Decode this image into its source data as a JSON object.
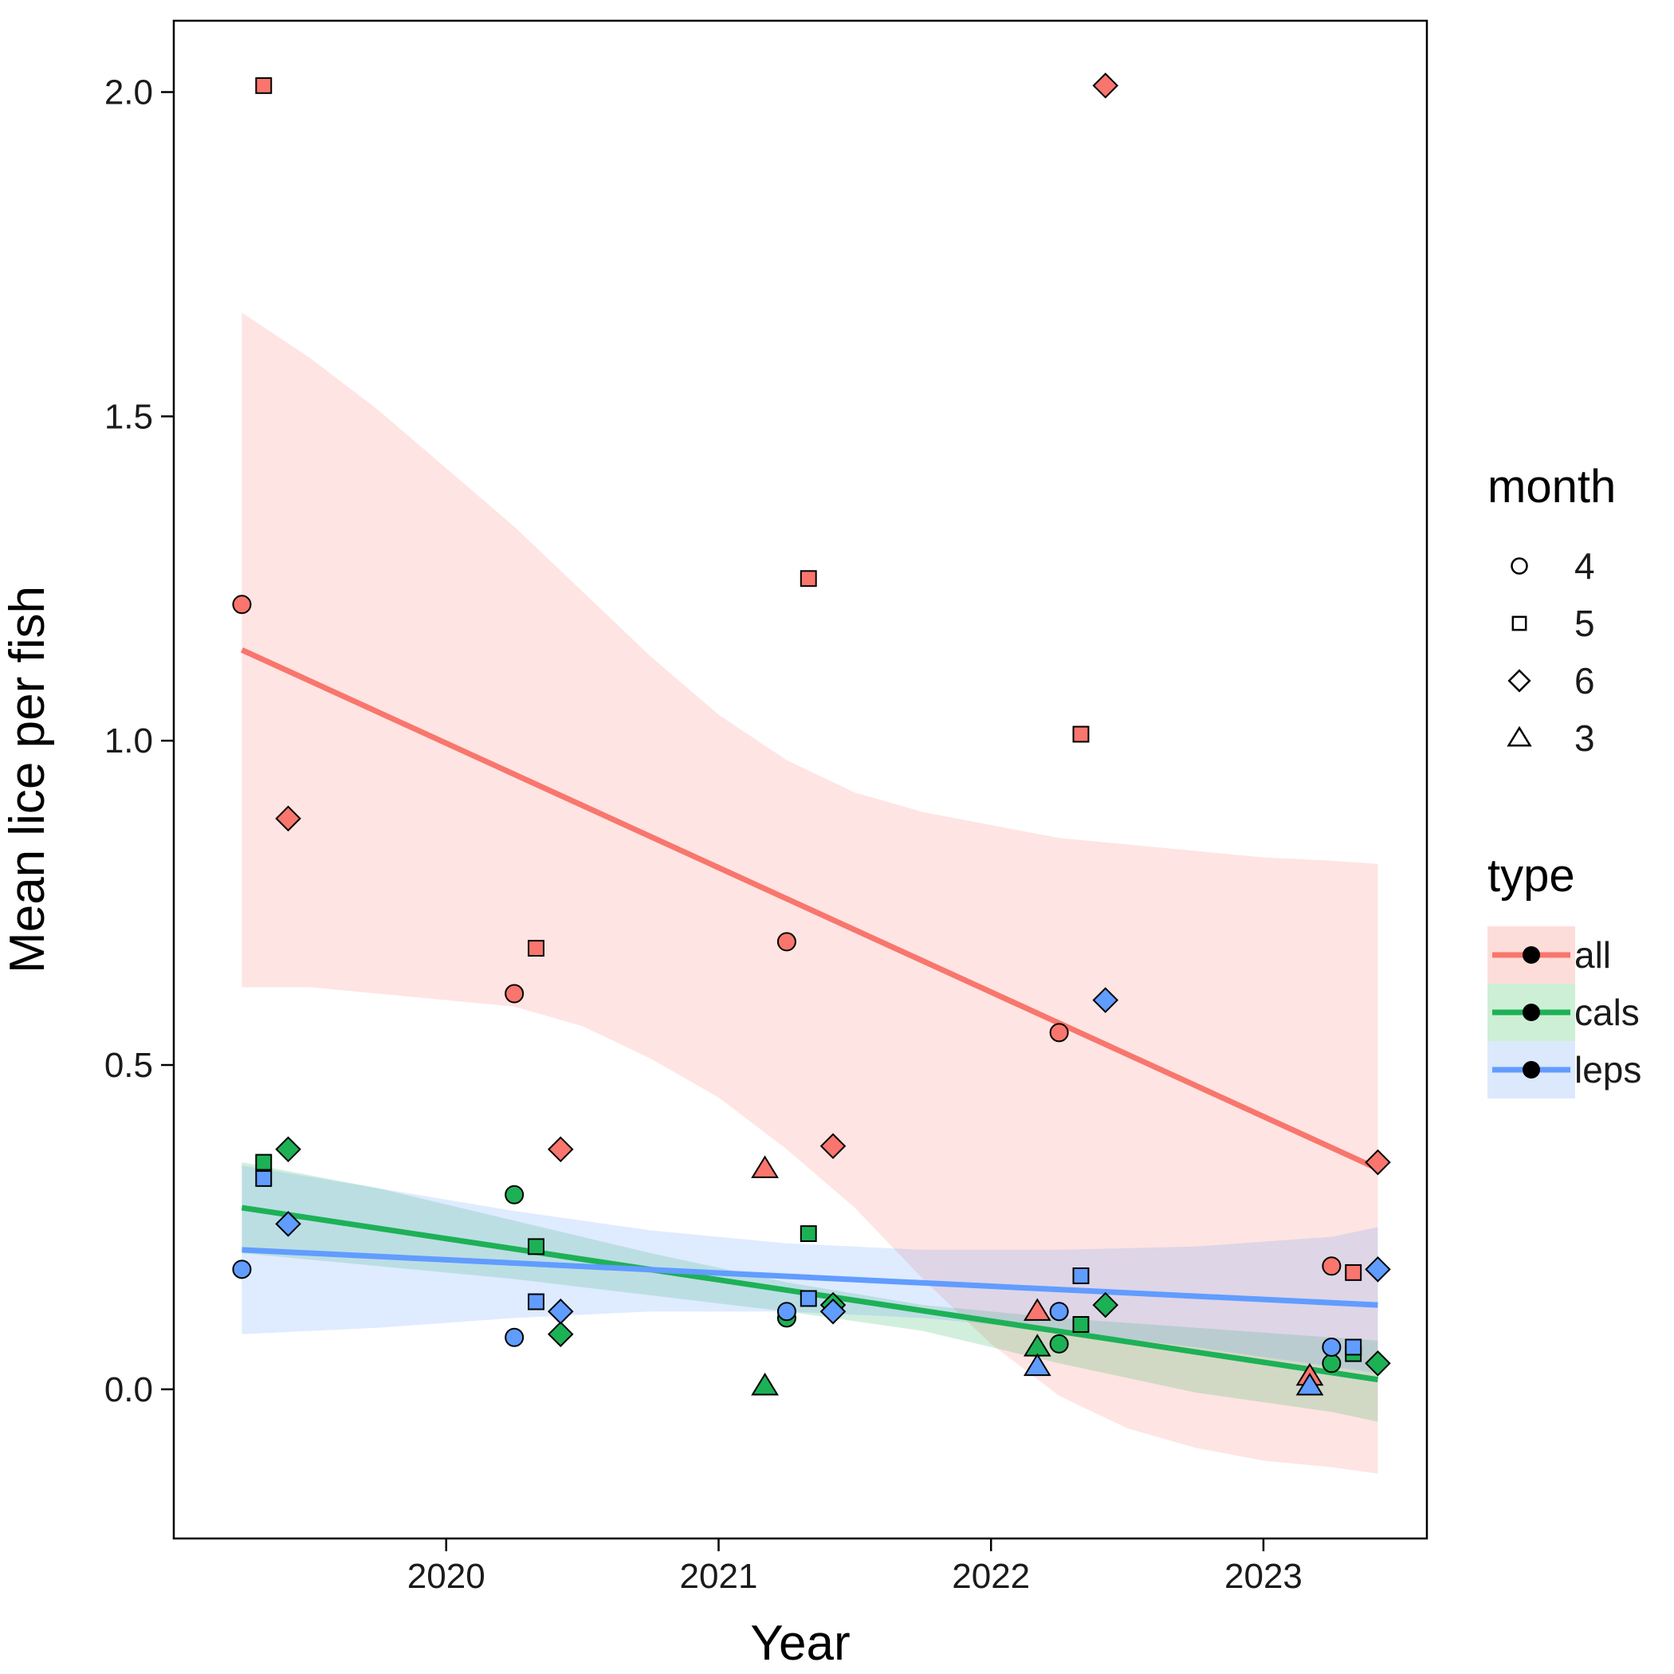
{
  "chart_data": {
    "type": "scatter",
    "xlabel": "Year",
    "ylabel": "Mean lice per fish",
    "xlim": [
      2019.0,
      2023.6
    ],
    "ylim": [
      -0.23,
      2.11
    ],
    "x_ticks": [
      2020,
      2021,
      2022,
      2023
    ],
    "x_tick_labels": [
      "2020",
      "2021",
      "2022",
      "2023"
    ],
    "y_ticks": [
      0.0,
      0.5,
      1.0,
      1.5,
      2.0
    ],
    "y_tick_labels": [
      "0.0",
      "0.5",
      "1.0",
      "1.5",
      "2.0"
    ],
    "grid": false,
    "legend_position": "right",
    "legends": {
      "month": {
        "title": "month",
        "items": [
          {
            "label": "4",
            "shape": "circle"
          },
          {
            "label": "5",
            "shape": "square"
          },
          {
            "label": "6",
            "shape": "diamond"
          },
          {
            "label": "3",
            "shape": "triangle"
          }
        ]
      },
      "type": {
        "title": "type",
        "items": [
          {
            "label": "all",
            "color": "#F8766D",
            "band": "#FDDDDA"
          },
          {
            "label": "cals",
            "color": "#1DB156",
            "band": "#CDEFD5"
          },
          {
            "label": "leps",
            "color": "#619CFF",
            "band": "#DCE8FC"
          }
        ]
      }
    },
    "series": [
      {
        "name": "all",
        "color": "#F8766D",
        "band_color": "#F8766D",
        "fit": {
          "x_start": 2019.25,
          "x_end": 2023.42,
          "y_start": 1.14,
          "y_end": 0.34
        },
        "ribbon": [
          {
            "x": 2019.25,
            "lower": 0.62,
            "upper": 1.66
          },
          {
            "x": 2019.5,
            "lower": 0.62,
            "upper": 1.59
          },
          {
            "x": 2019.75,
            "lower": 0.61,
            "upper": 1.51
          },
          {
            "x": 2020.0,
            "lower": 0.6,
            "upper": 1.42
          },
          {
            "x": 2020.25,
            "lower": 0.59,
            "upper": 1.33
          },
          {
            "x": 2020.5,
            "lower": 0.56,
            "upper": 1.23
          },
          {
            "x": 2020.75,
            "lower": 0.51,
            "upper": 1.13
          },
          {
            "x": 2021.0,
            "lower": 0.45,
            "upper": 1.04
          },
          {
            "x": 2021.25,
            "lower": 0.37,
            "upper": 0.97
          },
          {
            "x": 2021.5,
            "lower": 0.28,
            "upper": 0.92
          },
          {
            "x": 2021.75,
            "lower": 0.17,
            "upper": 0.89
          },
          {
            "x": 2022.0,
            "lower": 0.07,
            "upper": 0.87
          },
          {
            "x": 2022.25,
            "lower": -0.01,
            "upper": 0.85
          },
          {
            "x": 2022.5,
            "lower": -0.06,
            "upper": 0.84
          },
          {
            "x": 2022.75,
            "lower": -0.09,
            "upper": 0.83
          },
          {
            "x": 2023.0,
            "lower": -0.11,
            "upper": 0.82
          },
          {
            "x": 2023.25,
            "lower": -0.12,
            "upper": 0.815
          },
          {
            "x": 2023.42,
            "lower": -0.13,
            "upper": 0.81
          }
        ],
        "points": [
          {
            "x": 2019.25,
            "y": 1.21,
            "month": "4"
          },
          {
            "x": 2019.33,
            "y": 2.01,
            "month": "5"
          },
          {
            "x": 2019.42,
            "y": 0.88,
            "month": "6"
          },
          {
            "x": 2020.25,
            "y": 0.61,
            "month": "4"
          },
          {
            "x": 2020.33,
            "y": 0.68,
            "month": "5"
          },
          {
            "x": 2020.42,
            "y": 0.37,
            "month": "6"
          },
          {
            "x": 2021.17,
            "y": 0.34,
            "month": "3"
          },
          {
            "x": 2021.25,
            "y": 0.69,
            "month": "4"
          },
          {
            "x": 2021.33,
            "y": 1.25,
            "month": "5"
          },
          {
            "x": 2021.42,
            "y": 0.375,
            "month": "6"
          },
          {
            "x": 2022.17,
            "y": 0.12,
            "month": "3"
          },
          {
            "x": 2022.25,
            "y": 0.55,
            "month": "4"
          },
          {
            "x": 2022.33,
            "y": 1.01,
            "month": "5"
          },
          {
            "x": 2022.42,
            "y": 2.01,
            "month": "6"
          },
          {
            "x": 2023.17,
            "y": 0.02,
            "month": "3"
          },
          {
            "x": 2023.25,
            "y": 0.19,
            "month": "4"
          },
          {
            "x": 2023.33,
            "y": 0.18,
            "month": "5"
          },
          {
            "x": 2023.42,
            "y": 0.35,
            "month": "6"
          }
        ]
      },
      {
        "name": "cals",
        "color": "#1DB156",
        "band_color": "#1DB156",
        "fit": {
          "x_start": 2019.25,
          "x_end": 2023.42,
          "y_start": 0.28,
          "y_end": 0.015
        },
        "ribbon": [
          {
            "x": 2019.25,
            "lower": 0.21,
            "upper": 0.35
          },
          {
            "x": 2019.75,
            "lower": 0.19,
            "upper": 0.31
          },
          {
            "x": 2020.25,
            "lower": 0.17,
            "upper": 0.26
          },
          {
            "x": 2020.75,
            "lower": 0.145,
            "upper": 0.21
          },
          {
            "x": 2021.25,
            "lower": 0.12,
            "upper": 0.165
          },
          {
            "x": 2021.75,
            "lower": 0.09,
            "upper": 0.13
          },
          {
            "x": 2022.25,
            "lower": 0.04,
            "upper": 0.11
          },
          {
            "x": 2022.75,
            "lower": -0.005,
            "upper": 0.095
          },
          {
            "x": 2023.25,
            "lower": -0.035,
            "upper": 0.08
          },
          {
            "x": 2023.42,
            "lower": -0.05,
            "upper": 0.075
          }
        ],
        "points": [
          {
            "x": 2019.33,
            "y": 0.35,
            "month": "5"
          },
          {
            "x": 2019.42,
            "y": 0.37,
            "month": "6"
          },
          {
            "x": 2020.25,
            "y": 0.3,
            "month": "4"
          },
          {
            "x": 2020.33,
            "y": 0.22,
            "month": "5"
          },
          {
            "x": 2020.42,
            "y": 0.085,
            "month": "6"
          },
          {
            "x": 2021.17,
            "y": 0.005,
            "month": "3"
          },
          {
            "x": 2021.25,
            "y": 0.11,
            "month": "4"
          },
          {
            "x": 2021.33,
            "y": 0.24,
            "month": "5"
          },
          {
            "x": 2021.42,
            "y": 0.13,
            "month": "6"
          },
          {
            "x": 2022.17,
            "y": 0.065,
            "month": "3"
          },
          {
            "x": 2022.25,
            "y": 0.07,
            "month": "4"
          },
          {
            "x": 2022.33,
            "y": 0.1,
            "month": "5"
          },
          {
            "x": 2022.42,
            "y": 0.13,
            "month": "6"
          },
          {
            "x": 2023.25,
            "y": 0.04,
            "month": "4"
          },
          {
            "x": 2023.33,
            "y": 0.055,
            "month": "5"
          },
          {
            "x": 2023.42,
            "y": 0.04,
            "month": "6"
          }
        ]
      },
      {
        "name": "leps",
        "color": "#619CFF",
        "band_color": "#619CFF",
        "fit": {
          "x_start": 2019.25,
          "x_end": 2023.42,
          "y_start": 0.215,
          "y_end": 0.13
        },
        "ribbon": [
          {
            "x": 2019.25,
            "lower": 0.085,
            "upper": 0.345
          },
          {
            "x": 2019.75,
            "lower": 0.095,
            "upper": 0.31
          },
          {
            "x": 2020.25,
            "lower": 0.11,
            "upper": 0.275
          },
          {
            "x": 2020.75,
            "lower": 0.12,
            "upper": 0.245
          },
          {
            "x": 2021.25,
            "lower": 0.12,
            "upper": 0.225
          },
          {
            "x": 2021.75,
            "lower": 0.11,
            "upper": 0.215
          },
          {
            "x": 2022.25,
            "lower": 0.09,
            "upper": 0.215
          },
          {
            "x": 2022.75,
            "lower": 0.065,
            "upper": 0.22
          },
          {
            "x": 2023.25,
            "lower": 0.035,
            "upper": 0.235
          },
          {
            "x": 2023.42,
            "lower": 0.025,
            "upper": 0.25
          }
        ],
        "points": [
          {
            "x": 2019.25,
            "y": 0.185,
            "month": "4"
          },
          {
            "x": 2019.33,
            "y": 0.325,
            "month": "5"
          },
          {
            "x": 2019.42,
            "y": 0.255,
            "month": "6"
          },
          {
            "x": 2020.25,
            "y": 0.08,
            "month": "4"
          },
          {
            "x": 2020.33,
            "y": 0.135,
            "month": "5"
          },
          {
            "x": 2020.42,
            "y": 0.12,
            "month": "6"
          },
          {
            "x": 2021.25,
            "y": 0.12,
            "month": "4"
          },
          {
            "x": 2021.33,
            "y": 0.14,
            "month": "5"
          },
          {
            "x": 2021.42,
            "y": 0.12,
            "month": "6"
          },
          {
            "x": 2022.17,
            "y": 0.035,
            "month": "3"
          },
          {
            "x": 2022.25,
            "y": 0.12,
            "month": "4"
          },
          {
            "x": 2022.33,
            "y": 0.175,
            "month": "5"
          },
          {
            "x": 2022.42,
            "y": 0.6,
            "month": "6"
          },
          {
            "x": 2023.17,
            "y": 0.005,
            "month": "3"
          },
          {
            "x": 2023.25,
            "y": 0.065,
            "month": "4"
          },
          {
            "x": 2023.33,
            "y": 0.065,
            "month": "5"
          },
          {
            "x": 2023.42,
            "y": 0.185,
            "month": "6"
          }
        ]
      }
    ]
  }
}
